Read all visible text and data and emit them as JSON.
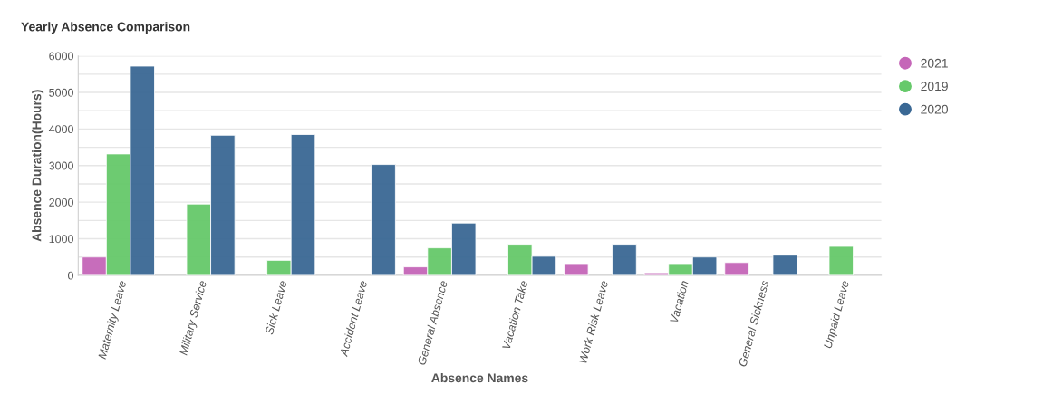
{
  "chart_data": {
    "type": "bar",
    "title": "Yearly Absence Comparison",
    "xlabel": "Absence Names",
    "ylabel": "Absence Duration(Hours)",
    "categories": [
      "Maternity Leave",
      "Military Service",
      "Sick Leave",
      "Accident Leave",
      "General Absence",
      "Vacation Take",
      "Work Risk Leave",
      "Vacation",
      "General Sickness",
      "Unpaid Leave"
    ],
    "series": [
      {
        "name": "2021",
        "color": "#c566b8",
        "values": [
          500,
          null,
          null,
          null,
          230,
          null,
          320,
          70,
          350,
          null
        ]
      },
      {
        "name": "2019",
        "color": "#66c96a",
        "values": [
          3320,
          1950,
          410,
          null,
          750,
          850,
          null,
          320,
          null,
          790
        ]
      },
      {
        "name": "2020",
        "color": "#3a6894",
        "values": [
          5720,
          3830,
          3850,
          3030,
          1430,
          520,
          850,
          500,
          550,
          null
        ]
      }
    ],
    "ylim": [
      0,
      6000
    ],
    "yticks": [
      0,
      {
        "value": 500,
        "label": null
      },
      1000,
      {
        "value": 1500,
        "label": null
      },
      2000,
      {
        "value": 2500,
        "label": null
      },
      3000,
      {
        "value": 3500,
        "label": null
      },
      4000,
      {
        "value": 4500,
        "label": null
      },
      5000,
      {
        "value": 5500,
        "label": null
      },
      6000
    ],
    "grid": "y",
    "legend": "top right"
  }
}
